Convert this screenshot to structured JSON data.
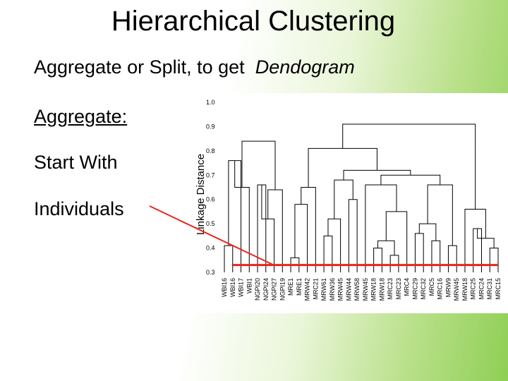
{
  "title": "Hierarchical Clustering",
  "subtitle": {
    "lead": "Aggregate or Split, to get",
    "emphasis": "Dendogram"
  },
  "bullets": [
    "Aggregate:",
    "Start With",
    "Individuals"
  ],
  "colors": {
    "annotation": "#e8251e",
    "lines": "#000000",
    "plot_bg": "#ffffff"
  },
  "dendrogram": {
    "ylabel": "Linkage Distance",
    "yticks": [
      "1.0",
      "0.9",
      "0.8",
      "0.7",
      "0.6",
      "0.5",
      "0.4",
      "0.3"
    ],
    "ylim": [
      0.3,
      1.0
    ],
    "leaves": [
      "WBI16",
      "WBI16",
      "WBI17",
      "WBI1",
      "NGPI20",
      "NGPI24",
      "NGPI27",
      "NGPI19",
      "MRE1",
      "MRE1",
      "MRW42",
      "MRC21",
      "MRW61",
      "MRW36",
      "MRW45",
      "MRW44",
      "MRW58",
      "MRW45",
      "MRW18",
      "MRW18",
      "MRC23",
      "MRC23",
      "MRC4",
      "MRC29",
      "MRC32",
      "MRC5",
      "MRC16",
      "MRW9",
      "MRW45",
      "MRW18",
      "MRC25",
      "MRC24",
      "MRC31",
      "MRC15"
    ],
    "merges": [
      [
        0,
        1,
        0.41
      ],
      [
        34,
        2,
        0.76
      ],
      [
        35,
        3,
        0.65
      ],
      [
        4,
        5,
        0.66
      ],
      [
        37,
        6,
        0.52
      ],
      [
        7,
        38,
        0.64
      ],
      [
        36,
        39,
        0.84
      ],
      [
        8,
        9,
        0.36
      ],
      [
        41,
        10,
        0.58
      ],
      [
        42,
        11,
        0.65
      ],
      [
        12,
        13,
        0.45
      ],
      [
        14,
        44,
        0.52
      ],
      [
        15,
        16,
        0.6
      ],
      [
        45,
        46,
        0.68
      ],
      [
        18,
        19,
        0.4
      ],
      [
        20,
        21,
        0.37
      ],
      [
        48,
        49,
        0.43
      ],
      [
        22,
        50,
        0.55
      ],
      [
        17,
        51,
        0.66
      ],
      [
        23,
        24,
        0.46
      ],
      [
        25,
        26,
        0.43
      ],
      [
        53,
        54,
        0.5
      ],
      [
        27,
        28,
        0.41
      ],
      [
        55,
        56,
        0.66
      ],
      [
        52,
        57,
        0.7
      ],
      [
        47,
        58,
        0.72
      ],
      [
        43,
        59,
        0.81
      ],
      [
        30,
        31,
        0.48
      ],
      [
        32,
        33,
        0.4
      ],
      [
        61,
        62,
        0.44
      ],
      [
        29,
        63,
        0.56
      ],
      [
        60,
        64,
        0.91
      ]
    ],
    "annotation_level": 0.33
  }
}
